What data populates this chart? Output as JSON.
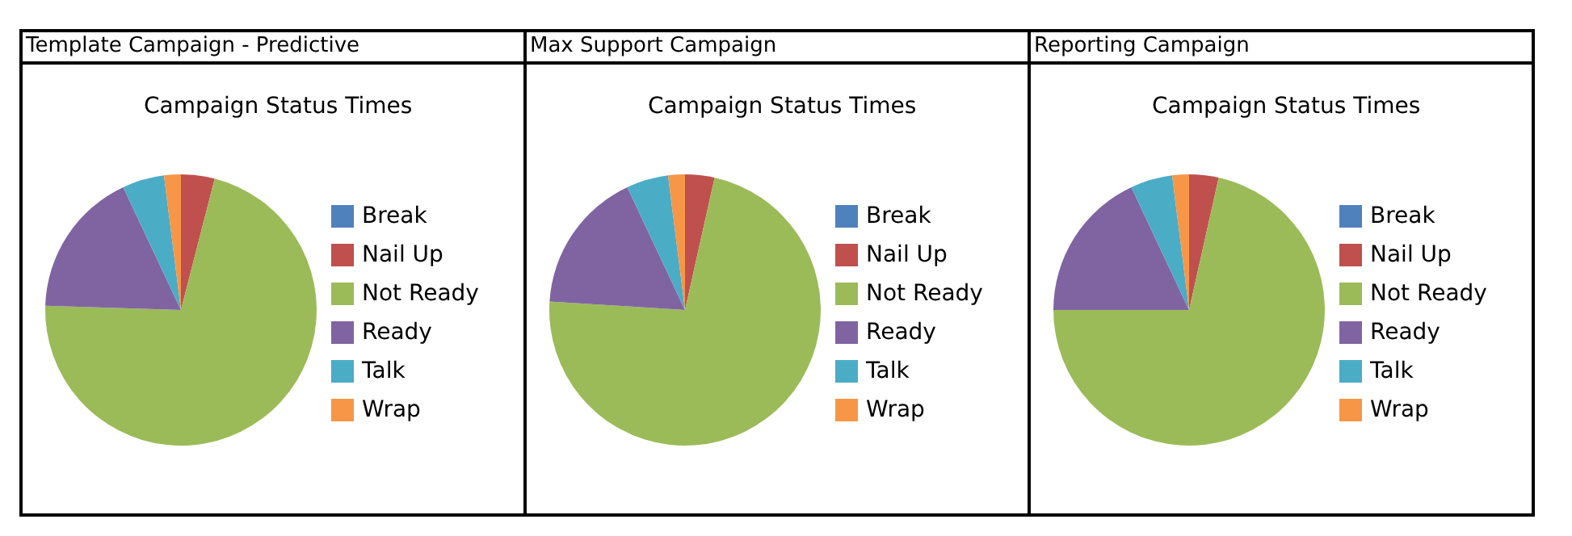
{
  "chart_data": [
    {
      "type": "pie",
      "title": "Template Campaign - Predictive",
      "subtitle": "Campaign Status Times",
      "categories": [
        "Break",
        "Nail Up",
        "Not Ready",
        "Ready",
        "Talk",
        "Wrap"
      ],
      "values": [
        0,
        4,
        71.5,
        17.5,
        5,
        2
      ],
      "colors": [
        "#4f81bd",
        "#c0504d",
        "#9bbb59",
        "#8064a2",
        "#4bacc6",
        "#f79646"
      ],
      "legend": "right"
    },
    {
      "type": "pie",
      "title": "Max Support Campaign",
      "subtitle": "Campaign Status Times",
      "categories": [
        "Break",
        "Nail Up",
        "Not Ready",
        "Ready",
        "Talk",
        "Wrap"
      ],
      "values": [
        0,
        3.5,
        72.5,
        17,
        5,
        2
      ],
      "colors": [
        "#4f81bd",
        "#c0504d",
        "#9bbb59",
        "#8064a2",
        "#4bacc6",
        "#f79646"
      ],
      "legend": "right"
    },
    {
      "type": "pie",
      "title": "Reporting Campaign",
      "subtitle": "Campaign Status Times",
      "categories": [
        "Break",
        "Nail Up",
        "Not Ready",
        "Ready",
        "Talk",
        "Wrap"
      ],
      "values": [
        0,
        3.5,
        71.5,
        18,
        5,
        2
      ],
      "colors": [
        "#4f81bd",
        "#c0504d",
        "#9bbb59",
        "#8064a2",
        "#4bacc6",
        "#f79646"
      ],
      "legend": "right"
    }
  ]
}
